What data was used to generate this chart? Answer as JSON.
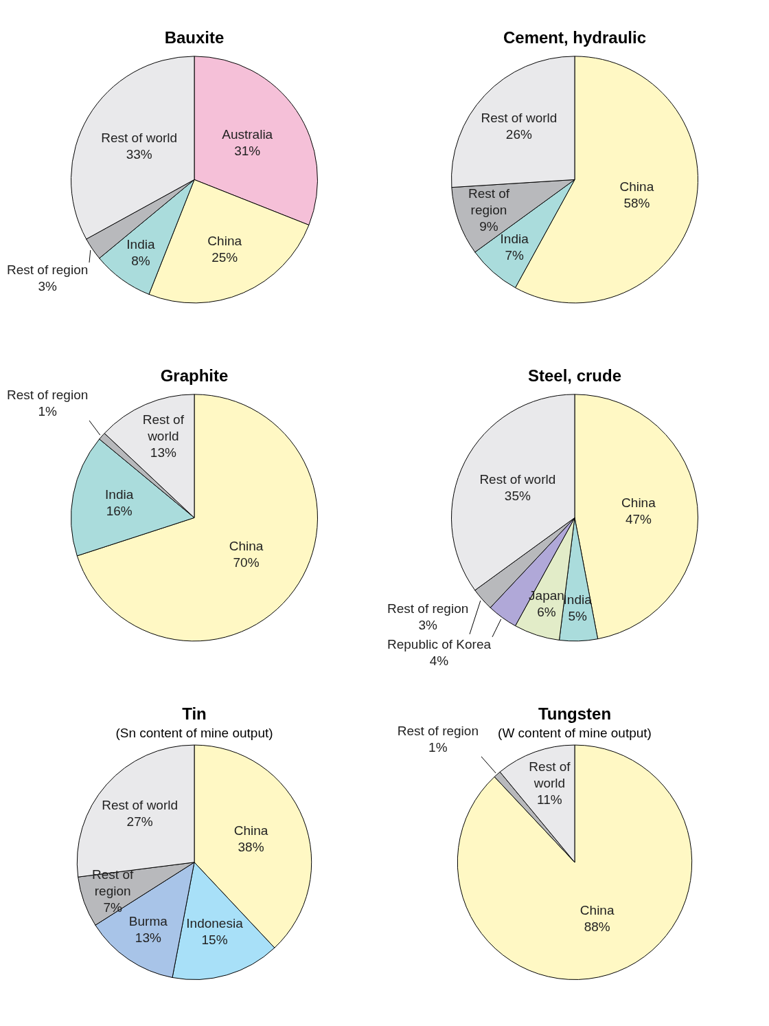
{
  "chart_data": [
    {
      "type": "pie",
      "title": "Bauxite",
      "categories": [
        "Australia",
        "China",
        "India",
        "Rest of region",
        "Rest of world"
      ],
      "values": [
        31,
        25,
        8,
        3,
        33
      ],
      "value_labels": [
        "31%",
        "25%",
        "8%",
        "3%",
        "33%"
      ],
      "colors": [
        "#f5c0d8",
        "#fff8c4",
        "#aadcdc",
        "#b8b9bc",
        "#e9e9eb"
      ],
      "legend": false
    },
    {
      "type": "pie",
      "title": "Cement, hydraulic",
      "categories": [
        "China",
        "India",
        "Rest of region",
        "Rest of world"
      ],
      "values": [
        58,
        7,
        9,
        26
      ],
      "value_labels": [
        "58%",
        "7%",
        "9%",
        "26%"
      ],
      "colors": [
        "#fff8c4",
        "#aadcdc",
        "#b8b9bc",
        "#e9e9eb"
      ],
      "legend": false
    },
    {
      "type": "pie",
      "title": "Graphite",
      "categories": [
        "China",
        "India",
        "Rest of region",
        "Rest of world"
      ],
      "values": [
        70,
        16,
        1,
        13
      ],
      "value_labels": [
        "70%",
        "16%",
        "1%",
        "13%"
      ],
      "colors": [
        "#fff8c4",
        "#aadcdc",
        "#b8b9bc",
        "#e9e9eb"
      ],
      "legend": false
    },
    {
      "type": "pie",
      "title": "Steel, crude",
      "categories": [
        "China",
        "India",
        "Japan",
        "Republic of Korea",
        "Rest of region",
        "Rest of world"
      ],
      "values": [
        47,
        5,
        6,
        4,
        3,
        35
      ],
      "value_labels": [
        "47%",
        "5%",
        "6%",
        "4%",
        "3%",
        "35%"
      ],
      "colors": [
        "#fff8c4",
        "#aadcdc",
        "#e2ecc8",
        "#b0a8d8",
        "#b8b9bc",
        "#e9e9eb"
      ],
      "legend": false
    },
    {
      "type": "pie",
      "title": "Tin",
      "subtitle": "(Sn content of mine output)",
      "categories": [
        "China",
        "Indonesia",
        "Burma",
        "Rest of region",
        "Rest of world"
      ],
      "values": [
        38,
        15,
        13,
        7,
        27
      ],
      "value_labels": [
        "38%",
        "15%",
        "13%",
        "7%",
        "27%"
      ],
      "colors": [
        "#fff8c4",
        "#a8e0f8",
        "#a8c4e8",
        "#b8b9bc",
        "#e9e9eb"
      ],
      "legend": false
    },
    {
      "type": "pie",
      "title": "Tungsten",
      "subtitle": "(W content of mine output)",
      "categories": [
        "China",
        "Rest of region",
        "Rest of world"
      ],
      "values": [
        88,
        1,
        11
      ],
      "value_labels": [
        "88%",
        "1%",
        "11%"
      ],
      "colors": [
        "#fff8c4",
        "#b8b9bc",
        "#e9e9eb"
      ],
      "legend": false
    }
  ]
}
